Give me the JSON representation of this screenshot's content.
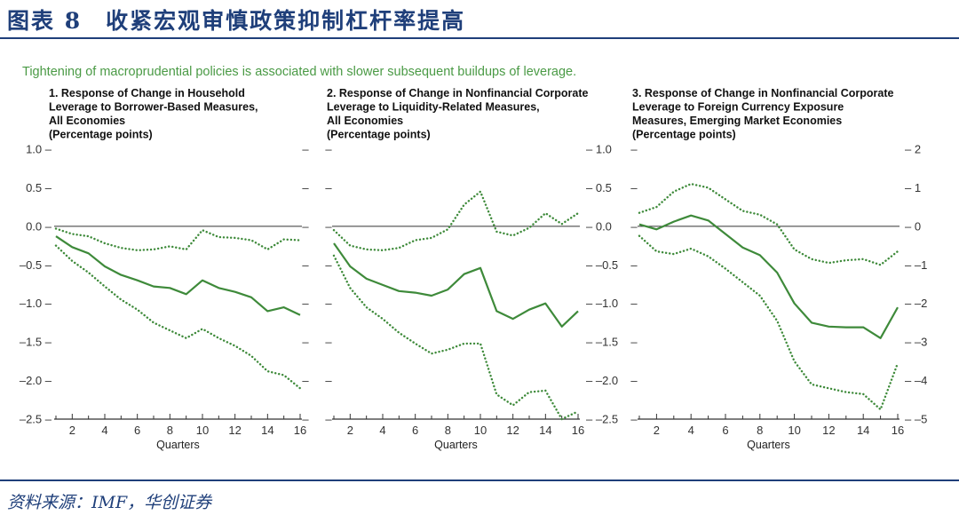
{
  "figure": {
    "title": "图表 8　收紧宏观审慎政策抑制杠杆率提高",
    "subtitle": "Tightening of macroprudential policies is associated with slower subsequent buildups of leverage.",
    "source": "资料来源：IMF，华创证券"
  },
  "colors": {
    "brand": "#1f3f7a",
    "series": "#3e8a3a",
    "subtitle": "#4a9a45",
    "axis": "#333333"
  },
  "chart_data": [
    {
      "type": "line",
      "title_lines": [
        "1. Response of Change in Household",
        "Leverage to Borrower-Based Measures,",
        "All Economies",
        "(Percentage points)"
      ],
      "xlabel": "Quarters",
      "xlim": [
        1,
        16
      ],
      "ylim": [
        -2.5,
        1.0
      ],
      "y_ticks": [
        1.0,
        0.5,
        0.0,
        -0.5,
        -1.0,
        -1.5,
        -2.0,
        -2.5
      ],
      "y_tick_labels": [
        "1.0",
        "0.5",
        "0.0",
        "–0.5",
        "–1.0",
        "–1.5",
        "–2.0",
        "–2.5"
      ],
      "y_axis_side": "left",
      "x_ticks": [
        2,
        4,
        6,
        8,
        10,
        12,
        14,
        16
      ],
      "x": [
        1,
        2,
        3,
        4,
        5,
        6,
        7,
        8,
        9,
        10,
        11,
        12,
        13,
        14,
        15,
        16
      ],
      "series": [
        {
          "name": "Upper bound",
          "style": "dotted",
          "values": [
            -0.03,
            -0.1,
            -0.13,
            -0.22,
            -0.28,
            -0.31,
            -0.3,
            -0.26,
            -0.3,
            -0.05,
            -0.14,
            -0.15,
            -0.18,
            -0.3,
            -0.17,
            -0.18
          ]
        },
        {
          "name": "Response",
          "style": "solid",
          "values": [
            -0.13,
            -0.27,
            -0.35,
            -0.52,
            -0.63,
            -0.7,
            -0.78,
            -0.8,
            -0.88,
            -0.7,
            -0.8,
            -0.85,
            -0.92,
            -1.1,
            -1.05,
            -1.15
          ]
        },
        {
          "name": "Lower bound",
          "style": "dotted",
          "values": [
            -0.25,
            -0.45,
            -0.6,
            -0.78,
            -0.95,
            -1.08,
            -1.25,
            -1.35,
            -1.45,
            -1.33,
            -1.45,
            -1.55,
            -1.68,
            -1.88,
            -1.93,
            -2.1
          ]
        }
      ]
    },
    {
      "type": "line",
      "title_lines": [
        "2. Response of Change in Nonfinancial Corporate",
        "Leverage to Liquidity-Related Measures,",
        "All Economies",
        "(Percentage points)"
      ],
      "xlabel": "Quarters",
      "xlim": [
        1,
        16
      ],
      "ylim": [
        -2.5,
        1.0
      ],
      "y_ticks": [
        1.0,
        0.5,
        0.0,
        -0.5,
        -1.0,
        -1.5,
        -2.0,
        -2.5
      ],
      "y_tick_labels": [
        "1.0",
        "0.5",
        "0.0",
        "–0.5",
        "–1.0",
        "–1.5",
        "–2.0",
        "–2.5"
      ],
      "y_axis_side": "right",
      "x_ticks": [
        2,
        4,
        6,
        8,
        10,
        12,
        14,
        16
      ],
      "x": [
        1,
        2,
        3,
        4,
        5,
        6,
        7,
        8,
        9,
        10,
        11,
        12,
        13,
        14,
        15,
        16
      ],
      "series": [
        {
          "name": "Upper bound",
          "style": "dotted",
          "values": [
            -0.05,
            -0.25,
            -0.3,
            -0.31,
            -0.28,
            -0.18,
            -0.15,
            -0.04,
            0.28,
            0.45,
            -0.07,
            -0.12,
            -0.02,
            0.17,
            0.03,
            0.17
          ]
        },
        {
          "name": "Response",
          "style": "solid",
          "values": [
            -0.22,
            -0.52,
            -0.68,
            -0.76,
            -0.84,
            -0.86,
            -0.9,
            -0.82,
            -0.62,
            -0.54,
            -1.1,
            -1.2,
            -1.08,
            -1.0,
            -1.3,
            -1.1
          ]
        },
        {
          "name": "Lower bound",
          "style": "dotted",
          "values": [
            -0.38,
            -0.8,
            -1.05,
            -1.2,
            -1.38,
            -1.52,
            -1.65,
            -1.6,
            -1.52,
            -1.52,
            -2.18,
            -2.32,
            -2.15,
            -2.13,
            -2.5,
            -2.4
          ]
        }
      ]
    },
    {
      "type": "line",
      "title_lines": [
        "3. Response of Change in Nonfinancial Corporate",
        "Leverage to Foreign Currency Exposure",
        "Measures, Emerging Market Economies",
        "(Percentage points)"
      ],
      "xlabel": "Quarters",
      "xlim": [
        1,
        16
      ],
      "ylim": [
        -5,
        2
      ],
      "y_ticks": [
        2,
        1,
        0,
        -1,
        -2,
        -3,
        -4,
        -5
      ],
      "y_tick_labels": [
        "2",
        "1",
        "0",
        "–1",
        "–2",
        "–3",
        "–4",
        "–5"
      ],
      "y_axis_side": "right",
      "x_ticks": [
        2,
        4,
        6,
        8,
        10,
        12,
        14,
        16
      ],
      "x": [
        1,
        2,
        3,
        4,
        5,
        6,
        7,
        8,
        9,
        10,
        11,
        12,
        13,
        14,
        15,
        16
      ],
      "series": [
        {
          "name": "Upper bound",
          "style": "dotted",
          "values": [
            0.35,
            0.5,
            0.9,
            1.1,
            1.0,
            0.7,
            0.4,
            0.3,
            0.05,
            -0.6,
            -0.85,
            -0.95,
            -0.88,
            -0.85,
            -1.0,
            -0.65
          ]
        },
        {
          "name": "Response",
          "style": "solid",
          "values": [
            0.05,
            -0.08,
            0.12,
            0.28,
            0.15,
            -0.2,
            -0.55,
            -0.75,
            -1.2,
            -2.0,
            -2.5,
            -2.6,
            -2.62,
            -2.62,
            -2.9,
            -2.1
          ]
        },
        {
          "name": "Lower bound",
          "style": "dotted",
          "values": [
            -0.25,
            -0.65,
            -0.72,
            -0.58,
            -0.78,
            -1.1,
            -1.45,
            -1.8,
            -2.45,
            -3.5,
            -4.1,
            -4.2,
            -4.3,
            -4.35,
            -4.75,
            -3.55
          ]
        }
      ]
    }
  ]
}
